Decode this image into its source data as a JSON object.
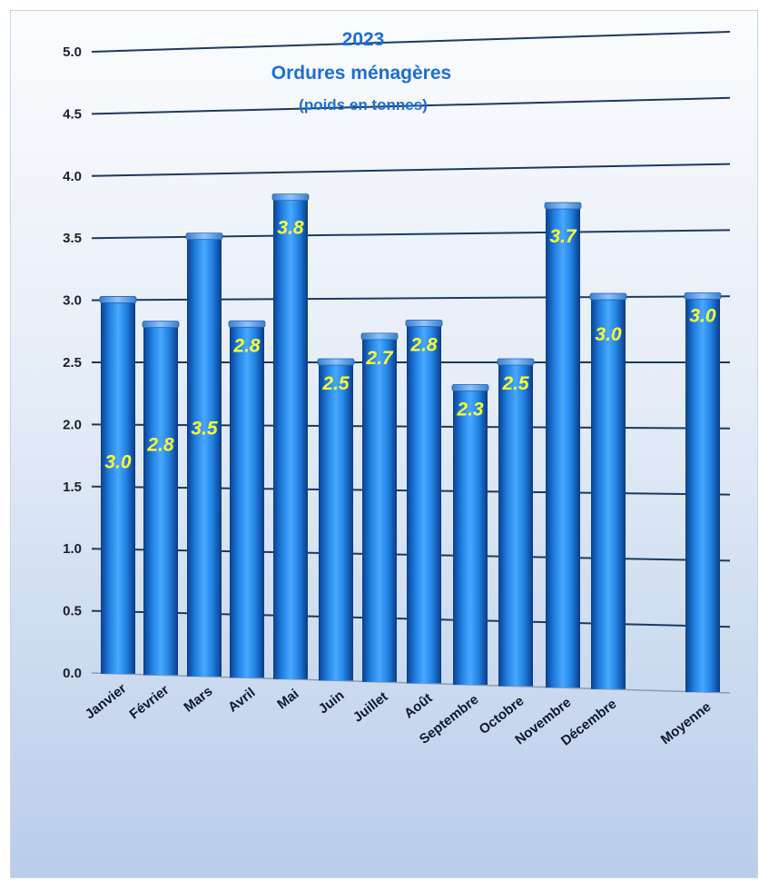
{
  "chart_data": {
    "type": "bar",
    "title": "2023",
    "subtitle": "Ordures ménagères",
    "subtitle2": "(poids en tonnes)",
    "categories": [
      "Janvier",
      "Février",
      "Mars",
      "Avril",
      "Mai",
      "Juin",
      "Juillet",
      "Août",
      "Septembre",
      "Octobre",
      "Novembre",
      "Décembre",
      "Moyenne"
    ],
    "values": [
      3.0,
      2.8,
      3.5,
      2.8,
      3.8,
      2.5,
      2.7,
      2.8,
      2.3,
      2.5,
      3.7,
      3.0,
      3.0
    ],
    "value_labels": [
      "3.0",
      "2.8",
      "3.5",
      "2.8",
      "3.8",
      "2.5",
      "2.7",
      "2.8",
      "2.3",
      "2.5",
      "3.7",
      "3.0",
      "3.0"
    ],
    "yticks": [
      "0.0",
      "0.5",
      "1.0",
      "1.5",
      "2.0",
      "2.5",
      "3.0",
      "3.5",
      "4.0",
      "4.5",
      "5.0"
    ],
    "ylim": [
      0,
      5
    ],
    "grid": true,
    "bar_color": "#1e88e5",
    "label_color": "#ffff33",
    "title_color": "#1b6fd0"
  }
}
